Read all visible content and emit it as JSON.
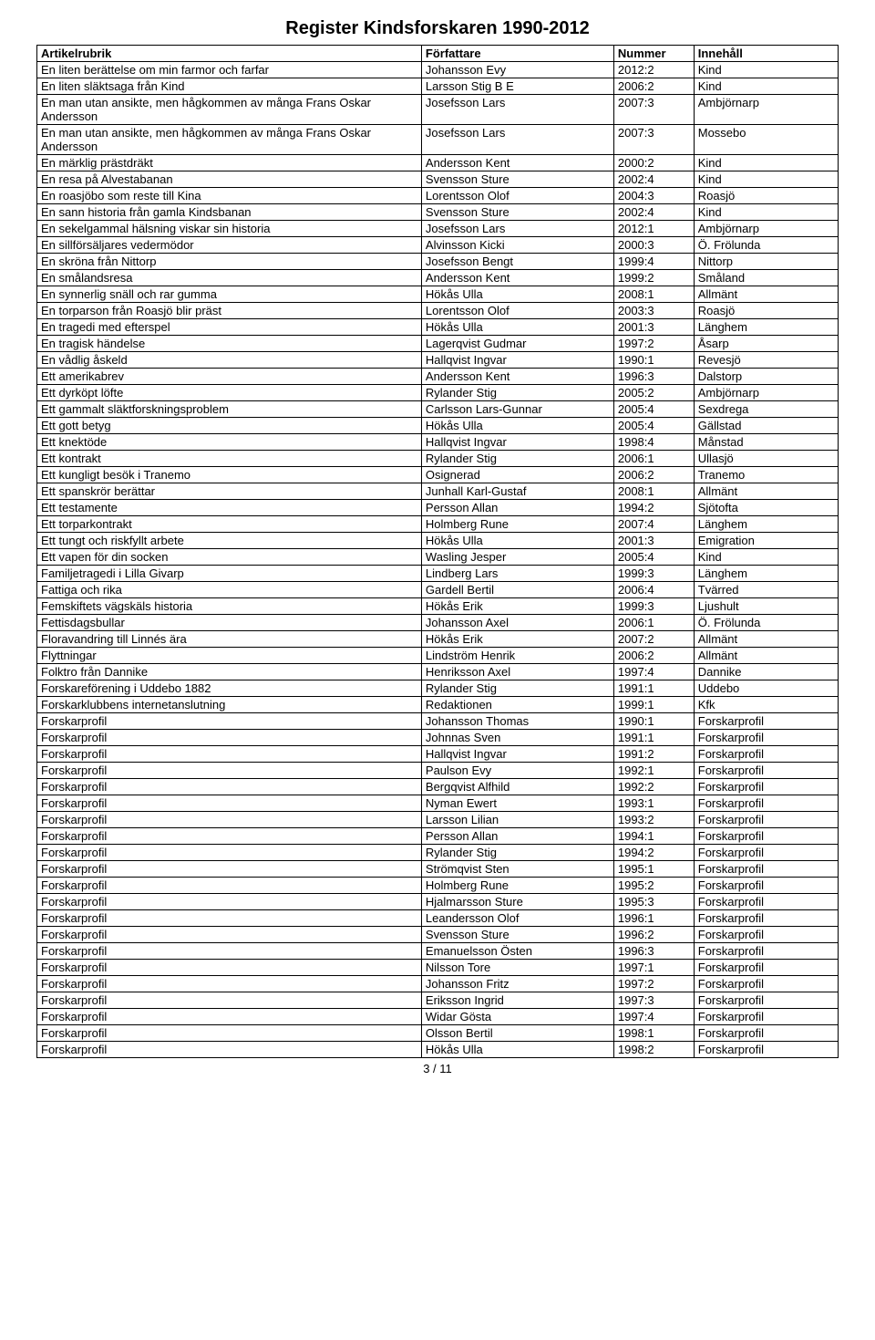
{
  "title": "Register Kindsforskaren 1990-2012",
  "columns": [
    "Artikelrubrik",
    "Författare",
    "Nummer",
    "Innehåll"
  ],
  "page_footer": "3 / 11",
  "rows": [
    [
      "En liten berättelse om min farmor och farfar",
      "Johansson Evy",
      "2012:2",
      "Kind"
    ],
    [
      "En liten släktsaga från Kind",
      "Larsson Stig B E",
      "2006:2",
      "Kind"
    ],
    [
      "En man utan ansikte, men hågkommen av många Frans Oskar Andersson",
      "Josefsson Lars",
      "2007:3",
      "Ambjörnarp"
    ],
    [
      "En man utan ansikte, men hågkommen av många Frans Oskar Andersson",
      "Josefsson Lars",
      "2007:3",
      "Mossebo"
    ],
    [
      "En märklig prästdräkt",
      "Andersson Kent",
      "2000:2",
      "Kind"
    ],
    [
      "En resa på Alvestabanan",
      "Svensson Sture",
      "2002:4",
      "Kind"
    ],
    [
      "En roasjöbo som reste till Kina",
      "Lorentsson Olof",
      "2004:3",
      "Roasjö"
    ],
    [
      "En sann historia från gamla Kindsbanan",
      "Svensson Sture",
      "2002:4",
      "Kind"
    ],
    [
      "En sekelgammal hälsning viskar sin historia",
      "Josefsson Lars",
      "2012:1",
      "Ambjörnarp"
    ],
    [
      "En sillförsäljares vedermödor",
      "Alvinsson Kicki",
      "2000:3",
      "Ö. Frölunda"
    ],
    [
      "En skröna från Nittorp",
      "Josefsson Bengt",
      "1999:4",
      "Nittorp"
    ],
    [
      "En smålandsresa",
      "Andersson Kent",
      "1999:2",
      "Småland"
    ],
    [
      "En synnerlig snäll och rar gumma",
      "Hökås Ulla",
      "2008:1",
      "Allmänt"
    ],
    [
      "En torparson från Roasjö blir präst",
      "Lorentsson Olof",
      "2003:3",
      "Roasjö"
    ],
    [
      "En tragedi med efterspel",
      "Hökås Ulla",
      "2001:3",
      "Länghem"
    ],
    [
      "En tragisk händelse",
      "Lagerqvist Gudmar",
      "1997:2",
      "Åsarp"
    ],
    [
      "En vådlig åskeld",
      "Hallqvist Ingvar",
      "1990:1",
      "Revesjö"
    ],
    [
      "Ett amerikabrev",
      "Andersson Kent",
      "1996:3",
      "Dalstorp"
    ],
    [
      "Ett dyrköpt löfte",
      "Rylander Stig",
      "2005:2",
      "Ambjörnarp"
    ],
    [
      "Ett gammalt släktforskningsproblem",
      "Carlsson Lars-Gunnar",
      "2005:4",
      "Sexdrega"
    ],
    [
      "Ett gott betyg",
      "Hökås Ulla",
      "2005:4",
      "Gällstad"
    ],
    [
      "Ett knektöde",
      "Hallqvist Ingvar",
      "1998:4",
      "Månstad"
    ],
    [
      "Ett kontrakt",
      "Rylander Stig",
      "2006:1",
      "Ullasjö"
    ],
    [
      "Ett kungligt besök i Tranemo",
      "Osignerad",
      "2006:2",
      "Tranemo"
    ],
    [
      "Ett spanskrör berättar",
      "Junhall Karl-Gustaf",
      "2008:1",
      "Allmänt"
    ],
    [
      "Ett testamente",
      "Persson Allan",
      "1994:2",
      "Sjötofta"
    ],
    [
      "Ett torparkontrakt",
      "Holmberg Rune",
      "2007:4",
      "Länghem"
    ],
    [
      "Ett tungt och riskfyllt arbete",
      "Hökås Ulla",
      "2001:3",
      "Emigration"
    ],
    [
      "Ett vapen för din socken",
      "Wasling Jesper",
      "2005:4",
      "Kind"
    ],
    [
      "Familjetragedi i Lilla Givarp",
      "Lindberg Lars",
      "1999:3",
      "Länghem"
    ],
    [
      "Fattiga och rika",
      "Gardell Bertil",
      "2006:4",
      "Tvärred"
    ],
    [
      "Femskiftets vägskäls historia",
      "Hökås Erik",
      "1999:3",
      "Ljushult"
    ],
    [
      "Fettisdagsbullar",
      "Johansson Axel",
      "2006:1",
      "Ö. Frölunda"
    ],
    [
      "Floravandring till Linnés ära",
      "Hökås Erik",
      "2007:2",
      "Allmänt"
    ],
    [
      "Flyttningar",
      "Lindström Henrik",
      "2006:2",
      "Allmänt"
    ],
    [
      "Folktro från Dannike",
      "Henriksson Axel",
      "1997:4",
      "Dannike"
    ],
    [
      "Forskareförening i Uddebo 1882",
      "Rylander Stig",
      "1991:1",
      "Uddebo"
    ],
    [
      "Forskarklubbens internetanslutning",
      "Redaktionen",
      "1999:1",
      "Kfk"
    ],
    [
      "Forskarprofil",
      "Johansson Thomas",
      "1990:1",
      "Forskarprofil"
    ],
    [
      "Forskarprofil",
      "Johnnas Sven",
      "1991:1",
      "Forskarprofil"
    ],
    [
      "Forskarprofil",
      "Hallqvist Ingvar",
      "1991:2",
      "Forskarprofil"
    ],
    [
      "Forskarprofil",
      "Paulson Evy",
      "1992:1",
      "Forskarprofil"
    ],
    [
      "Forskarprofil",
      "Bergqvist Alfhild",
      "1992:2",
      "Forskarprofil"
    ],
    [
      "Forskarprofil",
      "Nyman Ewert",
      "1993:1",
      "Forskarprofil"
    ],
    [
      "Forskarprofil",
      "Larsson Lilian",
      "1993:2",
      "Forskarprofil"
    ],
    [
      "Forskarprofil",
      "Persson Allan",
      "1994:1",
      "Forskarprofil"
    ],
    [
      "Forskarprofil",
      "Rylander Stig",
      "1994:2",
      "Forskarprofil"
    ],
    [
      "Forskarprofil",
      "Strömqvist Sten",
      "1995:1",
      "Forskarprofil"
    ],
    [
      "Forskarprofil",
      "Holmberg Rune",
      "1995:2",
      "Forskarprofil"
    ],
    [
      "Forskarprofil",
      "Hjalmarsson Sture",
      "1995:3",
      "Forskarprofil"
    ],
    [
      "Forskarprofil",
      "Leandersson Olof",
      "1996:1",
      "Forskarprofil"
    ],
    [
      "Forskarprofil",
      "Svensson Sture",
      "1996:2",
      "Forskarprofil"
    ],
    [
      "Forskarprofil",
      "Emanuelsson Östen",
      "1996:3",
      "Forskarprofil"
    ],
    [
      "Forskarprofil",
      "Nilsson Tore",
      "1997:1",
      "Forskarprofil"
    ],
    [
      "Forskarprofil",
      "Johansson Fritz",
      "1997:2",
      "Forskarprofil"
    ],
    [
      "Forskarprofil",
      "Eriksson Ingrid",
      "1997:3",
      "Forskarprofil"
    ],
    [
      "Forskarprofil",
      "Widar Gösta",
      "1997:4",
      "Forskarprofil"
    ],
    [
      "Forskarprofil",
      "Olsson Bertil",
      "1998:1",
      "Forskarprofil"
    ],
    [
      "Forskarprofil",
      "Hökås Ulla",
      "1998:2",
      "Forskarprofil"
    ]
  ],
  "multiline_rows": [
    2,
    3
  ]
}
